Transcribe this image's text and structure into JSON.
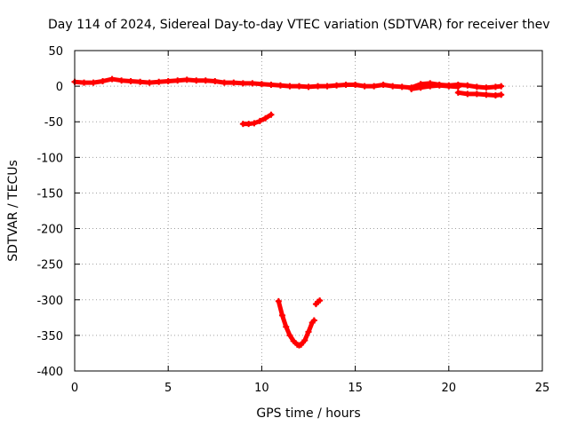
{
  "chart_data": {
    "type": "scatter",
    "title": "Day 114 of 2024, Sidereal Day-to-day VTEC variation (SDTVAR) for receiver thev",
    "xlabel": "GPS time / hours",
    "ylabel": "SDTVAR / TECUs",
    "xlim": [
      0,
      25
    ],
    "ylim": [
      -400,
      50
    ],
    "xticks": [
      0,
      5,
      10,
      15,
      20,
      25
    ],
    "yticks": [
      50,
      0,
      -50,
      -100,
      -150,
      -200,
      -250,
      -300,
      -350,
      -400
    ],
    "grid": true,
    "marker_color": "#ff0000",
    "series": [
      {
        "name": "SDTVAR",
        "segments": [
          {
            "x": [
              0,
              0.5,
              1.0,
              1.5,
              2.0,
              2.5,
              3.0,
              3.5,
              4.0,
              4.5,
              5.0,
              5.5,
              6.0,
              6.5,
              7.0,
              7.5,
              8.0,
              8.5,
              9.0,
              9.5,
              10.0,
              10.5,
              11.0,
              11.5,
              12.0,
              12.5,
              13.0,
              13.5,
              14.0,
              14.5,
              15.0,
              15.5,
              16.0,
              16.5,
              17.0,
              17.5,
              18.0,
              18.5,
              19.0,
              19.5,
              20.0,
              20.5,
              21.0,
              21.5,
              22.0,
              22.5,
              22.8
            ],
            "y": [
              6,
              5,
              5,
              7,
              10,
              8,
              7,
              6,
              5,
              6,
              7,
              8,
              9,
              8,
              8,
              7,
              5,
              5,
              4,
              4,
              3,
              2,
              1,
              0,
              0,
              -1,
              0,
              0,
              1,
              2,
              2,
              0,
              0,
              2,
              0,
              -1,
              -2,
              3,
              4,
              2,
              1,
              2,
              1,
              -1,
              -2,
              -1,
              0
            ]
          },
          {
            "x": [
              18.0,
              18.5,
              19.0,
              19.5,
              20.0,
              20.5
            ],
            "y": [
              -4,
              -2,
              0,
              1,
              0,
              -1
            ]
          },
          {
            "x": [
              20.5,
              21.0,
              21.5,
              22.0,
              22.5,
              22.8
            ],
            "y": [
              -9,
              -11,
              -11,
              -12,
              -13,
              -12
            ]
          },
          {
            "x": [
              9.0,
              9.3,
              9.6,
              9.9,
              10.2,
              10.5
            ],
            "y": [
              -53,
              -53,
              -52,
              -49,
              -45,
              -40
            ]
          },
          {
            "x": [
              10.9,
              11.1,
              11.3,
              11.5,
              11.7,
              11.9,
              12.0,
              12.1,
              12.3,
              12.5,
              12.7,
              12.8
            ],
            "y": [
              -302,
              -322,
              -338,
              -350,
              -358,
              -363,
              -364,
              -363,
              -357,
              -345,
              -332,
              -329
            ]
          },
          {
            "x": [
              12.9,
              13.0,
              13.1
            ],
            "y": [
              -306,
              -303,
              -301
            ]
          }
        ]
      }
    ]
  }
}
